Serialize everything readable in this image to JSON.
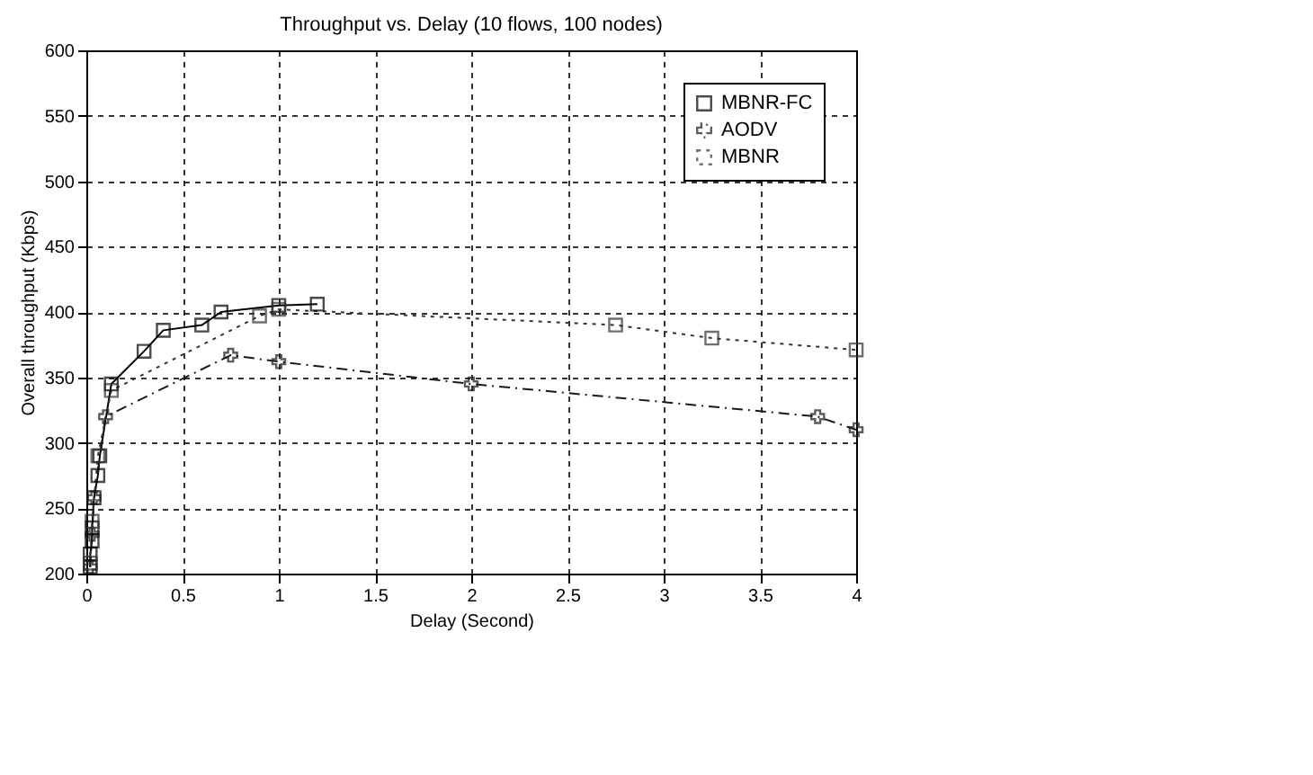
{
  "chart_data": {
    "type": "line",
    "title": "Throughput vs. Delay (10 flows, 100 nodes)",
    "xlabel": "Delay (Second)",
    "ylabel": "Overall throughput (Kbps)",
    "xlim": [
      0,
      4
    ],
    "xticks": [
      0,
      0.5,
      1,
      1.5,
      2,
      2.5,
      3,
      3.5,
      4
    ],
    "ylim": [
      200,
      600
    ],
    "yticks": [
      200,
      250,
      300,
      350,
      400,
      450,
      500,
      550,
      600
    ],
    "grid": true,
    "legend": "top right",
    "series": [
      {
        "name": "MBNR-FC",
        "color": "#000000",
        "marker": "square",
        "line_style": "solid",
        "x": [
          0.02,
          0.02,
          0.03,
          0.03,
          0.04,
          0.06,
          0.07,
          0.13,
          0.3,
          0.4,
          0.6,
          0.7,
          1.0,
          1.2
        ],
        "values": [
          205,
          215,
          225,
          235,
          258,
          275,
          290,
          345,
          370,
          386,
          390,
          400,
          405,
          406
        ]
      },
      {
        "name": "AODV",
        "color": "#1a1a1a",
        "marker": "cross",
        "line_style": "dashed",
        "x": [
          0.02,
          0.03,
          0.04,
          0.1,
          0.75,
          1.0,
          2.0,
          3.8,
          4.0
        ],
        "values": [
          205,
          230,
          258,
          320,
          367,
          362,
          345,
          320,
          310
        ]
      },
      {
        "name": "MBNR",
        "color": "#333333",
        "marker": "square",
        "line_style": "dotted",
        "x": [
          0.02,
          0.03,
          0.06,
          0.13,
          0.9,
          1.0,
          2.75,
          3.25,
          4.0
        ],
        "values": [
          208,
          240,
          290,
          340,
          397,
          402,
          390,
          380,
          371
        ]
      }
    ]
  }
}
